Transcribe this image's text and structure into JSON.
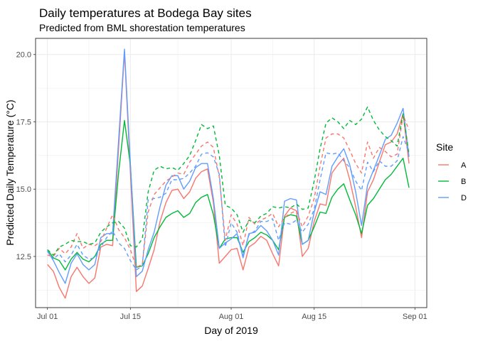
{
  "chart_data": {
    "type": "line",
    "title": "Daily temperatures at Bodega Bay sites",
    "subtitle": "Predicted from BML shorestation temperatures",
    "xlabel": "Day of 2019",
    "ylabel": "Predicted Daily Temperature (°C)",
    "x_day_of_july_start": "2019-07-01",
    "xlim": [
      "2019-06-29",
      "2019-09-03"
    ],
    "ylim": [
      10.6,
      20.6
    ],
    "x_ticks": [
      {
        "date": "2019-07-01",
        "label": "Jul 01"
      },
      {
        "date": "2019-07-15",
        "label": "Jul 15"
      },
      {
        "date": "2019-08-01",
        "label": "Aug 01"
      },
      {
        "date": "2019-08-15",
        "label": "Aug 15"
      },
      {
        "date": "2019-09-01",
        "label": "Sep 01"
      }
    ],
    "y_ticks": [
      {
        "value": 12.5,
        "label": "12.5"
      },
      {
        "value": 15.0,
        "label": "15.0"
      },
      {
        "value": 17.5,
        "label": "17.5"
      },
      {
        "value": 20.0,
        "label": "20.0"
      }
    ],
    "grid": true,
    "legend": {
      "title": "Site",
      "position": "right"
    },
    "dates": [
      "2019-07-01",
      "2019-07-02",
      "2019-07-03",
      "2019-07-04",
      "2019-07-05",
      "2019-07-06",
      "2019-07-07",
      "2019-07-08",
      "2019-07-09",
      "2019-07-10",
      "2019-07-11",
      "2019-07-12",
      "2019-07-13",
      "2019-07-14",
      "2019-07-15",
      "2019-07-16",
      "2019-07-17",
      "2019-07-18",
      "2019-07-19",
      "2019-07-20",
      "2019-07-21",
      "2019-07-22",
      "2019-07-23",
      "2019-07-24",
      "2019-07-25",
      "2019-07-26",
      "2019-07-27",
      "2019-07-28",
      "2019-07-29",
      "2019-07-30",
      "2019-07-31",
      "2019-08-01",
      "2019-08-02",
      "2019-08-03",
      "2019-08-04",
      "2019-08-05",
      "2019-08-06",
      "2019-08-07",
      "2019-08-08",
      "2019-08-09",
      "2019-08-10",
      "2019-08-11",
      "2019-08-12",
      "2019-08-13",
      "2019-08-14",
      "2019-08-15",
      "2019-08-16",
      "2019-08-17",
      "2019-08-18",
      "2019-08-19",
      "2019-08-20",
      "2019-08-21",
      "2019-08-22",
      "2019-08-23",
      "2019-08-24",
      "2019-08-25",
      "2019-08-26",
      "2019-08-27",
      "2019-08-28",
      "2019-08-29",
      "2019-08-30",
      "2019-08-31"
    ],
    "series": [
      {
        "name": "A",
        "linetype": "solid",
        "color": "#F8766D",
        "values": [
          12.2,
          11.95,
          11.35,
          10.95,
          11.75,
          12.1,
          11.75,
          11.5,
          11.7,
          12.85,
          12.95,
          12.9,
          16.5,
          20.1,
          15.6,
          11.2,
          11.4,
          12.05,
          12.75,
          13.8,
          14.5,
          14.95,
          15.0,
          14.65,
          14.9,
          15.4,
          15.65,
          15.75,
          14.5,
          12.25,
          12.5,
          12.75,
          12.8,
          12.0,
          12.85,
          13.0,
          13.25,
          13.1,
          12.6,
          12.15,
          14.0,
          14.3,
          14.2,
          12.5,
          12.8,
          13.8,
          14.45,
          14.4,
          15.6,
          15.9,
          16.15,
          15.35,
          14.35,
          13.2,
          14.9,
          15.35,
          16.0,
          16.65,
          16.75,
          17.05,
          17.8,
          15.95
        ]
      },
      {
        "name": "B",
        "linetype": "solid",
        "color": "#00BA38",
        "values": [
          12.75,
          12.45,
          12.35,
          12.0,
          12.4,
          12.65,
          12.4,
          12.3,
          12.5,
          12.95,
          13.1,
          13.1,
          15.6,
          17.55,
          15.9,
          12.1,
          12.15,
          12.6,
          13.2,
          13.6,
          13.95,
          14.1,
          14.2,
          13.95,
          14.1,
          14.5,
          14.7,
          14.8,
          14.05,
          12.8,
          13.15,
          13.2,
          13.2,
          12.65,
          13.05,
          13.2,
          13.4,
          13.3,
          13.1,
          12.75,
          13.95,
          14.05,
          14.0,
          12.95,
          13.1,
          13.6,
          14.15,
          14.1,
          14.7,
          15.0,
          15.2,
          14.6,
          14.05,
          13.35,
          14.4,
          14.65,
          15.0,
          15.35,
          15.55,
          15.85,
          16.15,
          15.05
        ]
      },
      {
        "name": "D",
        "linetype": "solid",
        "color": "#619CFF",
        "values": [
          12.7,
          12.35,
          11.9,
          11.5,
          12.25,
          12.6,
          12.2,
          12.0,
          12.2,
          13.2,
          13.35,
          13.35,
          16.8,
          20.2,
          15.95,
          11.75,
          11.95,
          12.75,
          13.4,
          14.35,
          15.15,
          15.5,
          15.5,
          15.0,
          15.3,
          15.8,
          15.95,
          15.95,
          14.65,
          12.8,
          13.0,
          13.15,
          13.35,
          12.45,
          13.35,
          13.4,
          13.65,
          13.45,
          13.1,
          12.55,
          14.55,
          14.65,
          14.6,
          12.95,
          13.1,
          14.15,
          14.9,
          14.8,
          15.85,
          16.2,
          16.5,
          15.9,
          14.9,
          13.65,
          15.15,
          15.7,
          16.25,
          16.85,
          17.0,
          17.45,
          18.0,
          16.2
        ]
      },
      {
        "name": "A",
        "linetype": "dashed",
        "color": "#F8766D",
        "values": [
          12.55,
          12.5,
          12.8,
          12.6,
          12.85,
          13.35,
          12.8,
          12.95,
          12.9,
          13.05,
          13.55,
          14.05,
          13.5,
          13.2,
          12.75,
          12.1,
          12.2,
          14.15,
          14.8,
          15.05,
          15.3,
          15.45,
          15.6,
          15.55,
          16.0,
          16.3,
          16.6,
          16.75,
          16.55,
          15.45,
          13.1,
          14.05,
          13.7,
          12.9,
          13.95,
          13.7,
          13.85,
          13.95,
          14.1,
          13.6,
          13.95,
          14.1,
          14.2,
          13.6,
          14.0,
          14.65,
          15.85,
          16.9,
          17.05,
          17.05,
          16.9,
          16.45,
          15.95,
          15.6,
          16.75,
          16.15,
          16.55,
          16.4,
          16.2,
          16.3,
          17.75,
          17.2
        ]
      },
      {
        "name": "B",
        "linetype": "dashed",
        "color": "#00BA38",
        "values": [
          12.75,
          12.55,
          12.85,
          12.95,
          13.1,
          13.05,
          13.05,
          12.95,
          13.0,
          13.4,
          13.6,
          13.75,
          13.8,
          13.55,
          12.9,
          12.85,
          13.15,
          14.9,
          15.7,
          15.85,
          15.75,
          15.8,
          15.7,
          15.95,
          16.25,
          16.8,
          17.4,
          17.25,
          17.35,
          16.25,
          14.4,
          14.3,
          14.05,
          13.4,
          13.85,
          13.75,
          14.0,
          14.1,
          14.35,
          14.3,
          14.35,
          14.3,
          14.45,
          14.25,
          14.3,
          15.3,
          16.5,
          17.45,
          17.65,
          17.5,
          17.25,
          17.55,
          17.4,
          17.6,
          18.05,
          17.55,
          17.2,
          16.95,
          16.8,
          16.6,
          17.8,
          16.3
        ]
      },
      {
        "name": "D",
        "linetype": "dashed",
        "color": "#619CFF",
        "values": [
          12.7,
          12.4,
          12.6,
          12.3,
          12.55,
          12.95,
          12.55,
          12.4,
          12.45,
          12.85,
          13.2,
          13.45,
          13.0,
          12.8,
          12.35,
          12.0,
          12.15,
          14.6,
          14.65,
          14.7,
          14.85,
          15.35,
          15.35,
          15.4,
          15.6,
          15.85,
          16.3,
          16.35,
          16.2,
          15.55,
          12.85,
          13.75,
          13.4,
          12.55,
          13.3,
          13.45,
          13.8,
          13.8,
          13.9,
          13.1,
          13.75,
          13.7,
          13.85,
          13.4,
          13.7,
          14.25,
          15.35,
          16.35,
          16.3,
          16.35,
          16.05,
          15.8,
          15.3,
          14.95,
          16.0,
          15.65,
          16.05,
          15.85,
          15.85,
          16.05,
          16.95,
          16.35
        ]
      }
    ],
    "legend_entries": [
      {
        "label": "A",
        "color": "#F8766D"
      },
      {
        "label": "B",
        "color": "#00BA38"
      },
      {
        "label": "D",
        "color": "#619CFF"
      }
    ]
  }
}
